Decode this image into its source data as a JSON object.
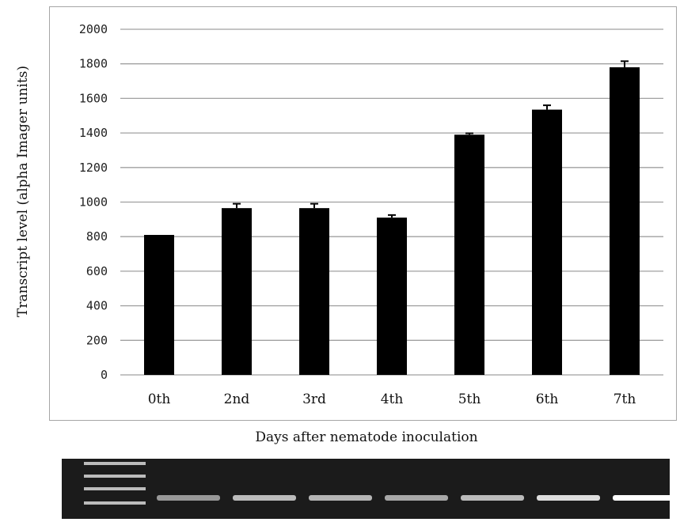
{
  "chart_data": {
    "type": "bar",
    "categories": [
      "0th",
      "2nd",
      "3rd",
      "4th",
      "5th",
      "6th",
      "7th"
    ],
    "values": [
      810,
      965,
      965,
      910,
      1390,
      1535,
      1780
    ],
    "errors": [
      0,
      25,
      25,
      15,
      8,
      25,
      35
    ],
    "xlabel": "Days after nematode inoculation",
    "ylabel": "Transcript level (alpha Imager units)",
    "ylim": [
      0,
      2000
    ],
    "yticks": [
      0,
      200,
      400,
      600,
      800,
      1000,
      1200,
      1400,
      1600,
      1800,
      2000
    ],
    "grid": true,
    "bar_color": "#000000",
    "grid_color": "#a0a0a0"
  },
  "gel": {
    "ladder_bands": 4,
    "lane_intensity": [
      0.55,
      0.7,
      0.68,
      0.62,
      0.7,
      0.85,
      1.0
    ]
  }
}
